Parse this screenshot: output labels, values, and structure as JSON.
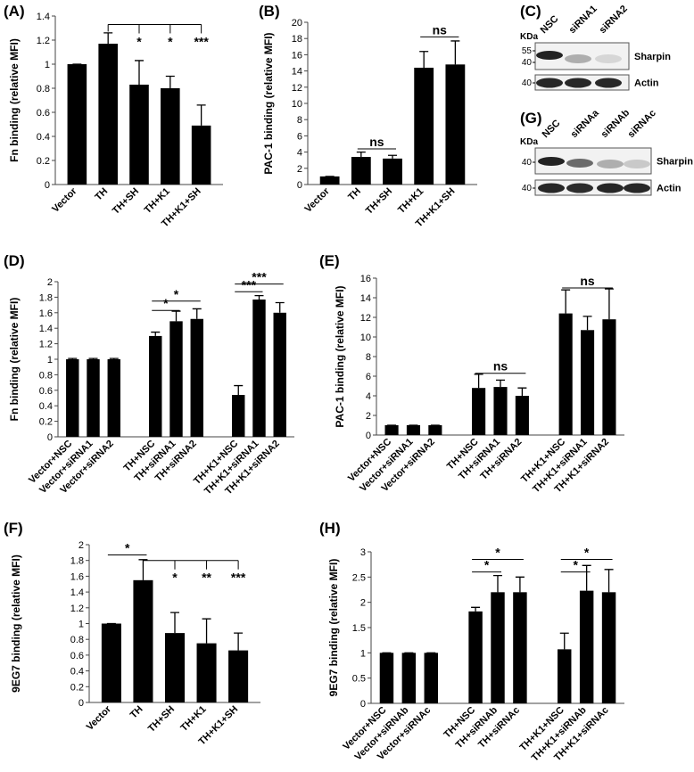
{
  "chart_data": [
    {
      "type": "bar",
      "panel_label": "(A)",
      "y_label": "Fn binding (relative MFI)",
      "color": "#000000",
      "categories": [
        "Vector",
        "TH",
        "TH+SH",
        "TH+K1",
        "TH+K1+SH"
      ],
      "values": [
        1,
        1.17,
        0.83,
        0.8,
        0.49
      ],
      "errors": [
        0,
        0.09,
        0.2,
        0.1,
        0.17
      ],
      "ylim": [
        0,
        1.4
      ],
      "yticks": [
        0,
        0.2,
        0.4,
        0.6,
        0.8,
        1,
        1.2,
        1.4
      ],
      "annotations": [
        "*",
        "*",
        "***"
      ]
    },
    {
      "type": "bar",
      "panel_label": "(B)",
      "y_label": "PAC-1 binding (relative MFI)",
      "color": "#000000",
      "categories": [
        "Vector",
        "TH",
        "TH+SH",
        "TH+K1",
        "TH+K1+SH"
      ],
      "values": [
        1,
        3.4,
        3.2,
        14.4,
        14.8
      ],
      "errors": [
        0,
        0.6,
        0.4,
        2,
        2.9
      ],
      "ylim": [
        0,
        20
      ],
      "yticks": [
        0,
        2,
        4,
        6,
        8,
        10,
        12,
        14,
        16,
        18,
        20
      ],
      "annotations": [
        "ns",
        "ns"
      ]
    },
    {
      "type": "bar",
      "panel_label": "(D)",
      "y_label": "Fn binding (relative MFI)",
      "color": "#000000",
      "categories": [
        "Vector+NSC",
        "Vector+siRNA1",
        "Vector+siRNA2",
        "TH+NSC",
        "TH+siRNA1",
        "TH+siRNA2",
        "TH+K1+NSC",
        "TH+K1+siRNA1",
        "TH+K1+siRNA2"
      ],
      "values": [
        1,
        1,
        1,
        1.3,
        1.49,
        1.52,
        0.54,
        1.77,
        1.6
      ],
      "errors": [
        0.01,
        0.01,
        0.01,
        0.05,
        0.13,
        0.13,
        0.12,
        0.05,
        0.13
      ],
      "ylim": [
        0,
        2
      ],
      "yticks": [
        0,
        0.2,
        0.4,
        0.6,
        0.8,
        1,
        1.2,
        1.4,
        1.6,
        1.8,
        2
      ],
      "annotations": [
        "*",
        "*",
        "***",
        "***"
      ]
    },
    {
      "type": "bar",
      "panel_label": "(E)",
      "y_label": "PAC-1 binding (relative MFI)",
      "color": "#000000",
      "categories": [
        "Vector+NSC",
        "Vector+siRNA1",
        "Vector+siRNA2",
        "TH+NSC",
        "TH+siRNA1",
        "TH+siRNA2",
        "TH+K1+NSC",
        "TH+K1+siRNA1",
        "TH+K1+siRNA2"
      ],
      "values": [
        1,
        1,
        1,
        4.8,
        4.9,
        4.0,
        12.4,
        10.7,
        11.8
      ],
      "errors": [
        0,
        0,
        0,
        1.4,
        0.7,
        0.8,
        2.4,
        1.4,
        3.1
      ],
      "ylim": [
        0,
        16
      ],
      "yticks": [
        0,
        2,
        4,
        6,
        8,
        10,
        12,
        14,
        16
      ],
      "annotations": [
        "ns",
        "ns"
      ]
    },
    {
      "type": "bar",
      "panel_label": "(F)",
      "y_label": "9EG7 binding (relative MFI)",
      "color": "#000000",
      "categories": [
        "Vector",
        "TH",
        "TH+SH",
        "TH+K1",
        "TH+K1+SH"
      ],
      "values": [
        1,
        1.55,
        0.88,
        0.75,
        0.66
      ],
      "errors": [
        0,
        0.26,
        0.26,
        0.31,
        0.22
      ],
      "ylim": [
        0,
        2
      ],
      "yticks": [
        0,
        0.2,
        0.4,
        0.6,
        0.8,
        1,
        1.2,
        1.4,
        1.6,
        1.8,
        2
      ],
      "annotations": [
        "*",
        "*",
        "**",
        "***"
      ]
    },
    {
      "type": "bar",
      "panel_label": "(H)",
      "y_label": "9EG7 binding (relative MFI)",
      "color": "#000000",
      "categories": [
        "Vector+NSC",
        "Vector+siRNAb",
        "Vector+siRNAc",
        "TH+NSC",
        "TH+siRNAb",
        "TH+siRNAc",
        "TH+K1+NSC",
        "TH+K1+siRNAb",
        "TH+K1+siRNAc"
      ],
      "values": [
        1,
        1,
        1,
        1.82,
        2.2,
        2.2,
        1.07,
        2.23,
        2.2
      ],
      "errors": [
        0,
        0,
        0,
        0.08,
        0.33,
        0.3,
        0.32,
        0.5,
        0.45
      ],
      "ylim": [
        0,
        3
      ],
      "yticks": [
        0,
        0.5,
        1,
        1.5,
        2,
        2.5,
        3
      ],
      "annotations": [
        "*",
        "*",
        "*",
        "*"
      ]
    }
  ],
  "blots": [
    {
      "panel_label": "(C)",
      "unit": "KDa",
      "lanes": [
        "NSC",
        "siRNA1",
        "siRNA2"
      ],
      "rows": [
        {
          "label": "Sharpin",
          "markers": [
            55,
            40
          ]
        },
        {
          "label": "Actin",
          "markers": [
            40
          ]
        }
      ]
    },
    {
      "panel_label": "(G)",
      "unit": "KDa",
      "lanes": [
        "NSC",
        "siRNAa",
        "siRNAb",
        "siRNAc"
      ],
      "rows": [
        {
          "label": "Sharpin",
          "markers": [
            40
          ]
        },
        {
          "label": "Actin",
          "markers": [
            40
          ]
        }
      ]
    }
  ]
}
